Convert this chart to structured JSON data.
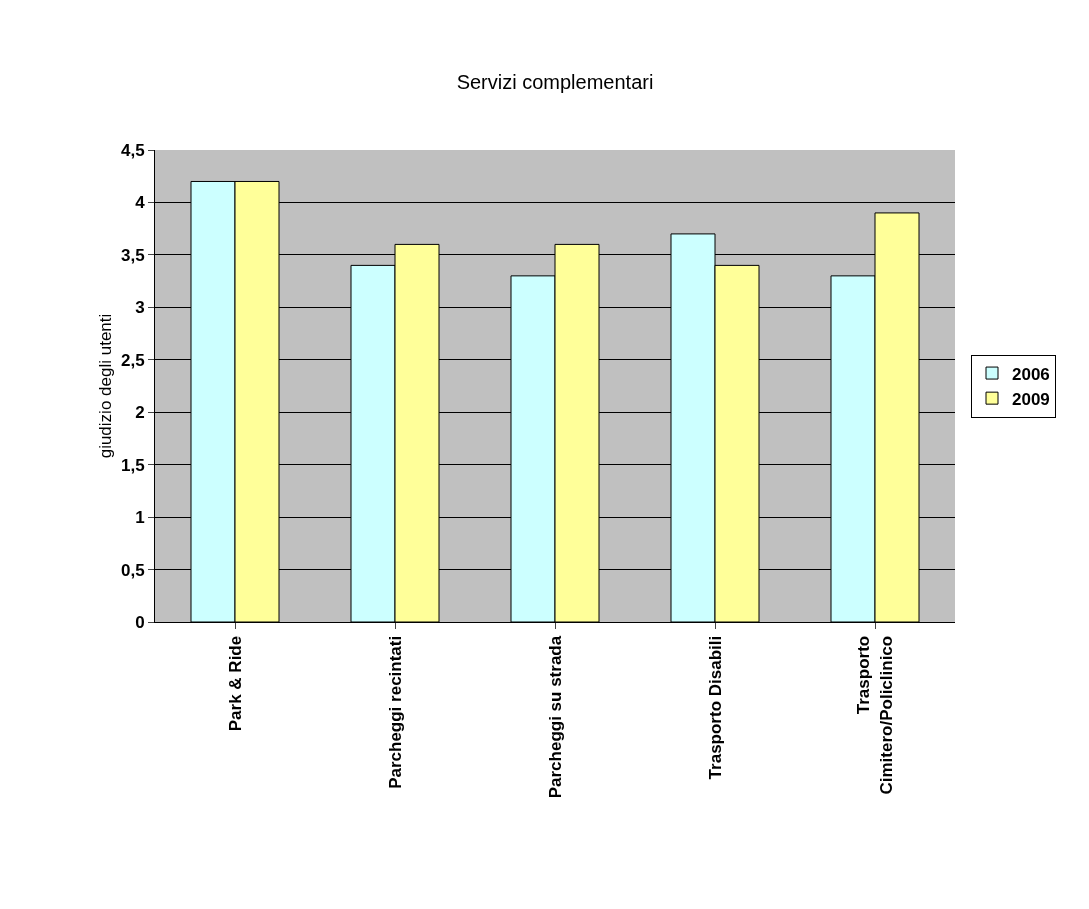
{
  "chart_data": {
    "type": "bar",
    "title": "Servizi complementari",
    "ylabel": "giudizio degli utenti",
    "categories": [
      "Park & Ride",
      "Parcheggi recintati",
      "Parcheggi su strada",
      "Trasporto Disabili",
      "Trasporto Cimitero/Policlinico"
    ],
    "series": [
      {
        "name": "2006",
        "color": "#ccffff",
        "values": [
          4.2,
          3.4,
          3.3,
          3.7,
          3.3
        ]
      },
      {
        "name": "2009",
        "color": "#ffff99",
        "values": [
          4.2,
          3.6,
          3.6,
          3.4,
          3.9
        ]
      }
    ],
    "ylim": [
      0,
      4.5
    ],
    "yticks": [
      0,
      {
        "value": 0.5,
        "label": "0,5"
      },
      1,
      {
        "value": 1.5,
        "label": "1,5"
      },
      2,
      {
        "value": 2.5,
        "label": "2,5"
      },
      3,
      {
        "value": 3.5,
        "label": "3,5"
      },
      4,
      {
        "value": 4.5,
        "label": "4,5"
      }
    ],
    "grid": "y",
    "legend": "right"
  }
}
